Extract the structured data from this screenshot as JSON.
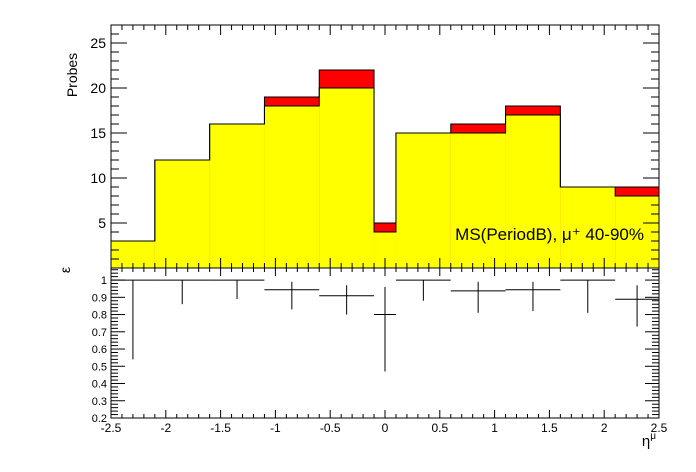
{
  "chart_data": [
    {
      "type": "bar",
      "panel": "top",
      "ylabel": "Probes",
      "annotation": "MS(PeriodB), μ⁺ 40-90%",
      "xlim": [
        -2.5,
        2.5
      ],
      "ylim": [
        0,
        27
      ],
      "yticks_major": [
        5,
        10,
        15,
        20,
        25
      ],
      "bin_edges": [
        -2.5,
        -2.1,
        -1.6,
        -1.1,
        -0.6,
        -0.1,
        0.1,
        0.6,
        1.1,
        1.6,
        2.1,
        2.5
      ],
      "series": [
        {
          "name": "",
          "color": "#ffff00",
          "values": [
            3,
            12,
            16,
            18,
            20,
            4,
            15,
            15,
            17,
            9,
            8
          ]
        },
        {
          "name": "",
          "color": "#ff0000",
          "values": [
            3,
            12,
            16,
            19,
            22,
            5,
            15,
            16,
            18,
            9,
            9
          ]
        }
      ]
    },
    {
      "type": "scatter",
      "panel": "bottom",
      "ylabel": "ε",
      "xlabel": "η^μ",
      "xlim": [
        -2.5,
        2.5
      ],
      "ylim": [
        0.2,
        1.07
      ],
      "xticks": [
        -2.5,
        -2,
        -1.5,
        -1,
        -0.5,
        0,
        0.5,
        1,
        1.5,
        2,
        2.5
      ],
      "xtick_labels": [
        "-2.5",
        "-2",
        "-1.5",
        "-1",
        "-0.5",
        "0",
        "0.5",
        "1",
        "1.5",
        "2",
        "2.5"
      ],
      "yticks": [
        0.2,
        0.3,
        0.4,
        0.5,
        0.6,
        0.7,
        0.8,
        0.9,
        1
      ],
      "ytick_labels": [
        "0.2",
        "0.3",
        "0.4",
        "0.5",
        "0.6",
        "0.7",
        "0.8",
        "0.9",
        "1"
      ],
      "points": [
        {
          "xlo": -2.5,
          "xhi": -2.1,
          "y": 1.0,
          "ylo": 0.54,
          "yhi": 1.0
        },
        {
          "xlo": -2.1,
          "xhi": -1.6,
          "y": 1.0,
          "ylo": 0.86,
          "yhi": 1.0
        },
        {
          "xlo": -1.6,
          "xhi": -1.1,
          "y": 1.0,
          "ylo": 0.89,
          "yhi": 1.0
        },
        {
          "xlo": -1.1,
          "xhi": -0.6,
          "y": 0.944,
          "ylo": 0.83,
          "yhi": 0.99
        },
        {
          "xlo": -0.6,
          "xhi": -0.1,
          "y": 0.909,
          "ylo": 0.8,
          "yhi": 0.97
        },
        {
          "xlo": -0.1,
          "xhi": 0.1,
          "y": 0.8,
          "ylo": 0.47,
          "yhi": 0.96
        },
        {
          "xlo": 0.1,
          "xhi": 0.6,
          "y": 1.0,
          "ylo": 0.88,
          "yhi": 1.0
        },
        {
          "xlo": 0.6,
          "xhi": 1.1,
          "y": 0.9375,
          "ylo": 0.81,
          "yhi": 0.99
        },
        {
          "xlo": 1.1,
          "xhi": 1.6,
          "y": 0.944,
          "ylo": 0.82,
          "yhi": 0.99
        },
        {
          "xlo": 1.6,
          "xhi": 2.1,
          "y": 1.0,
          "ylo": 0.81,
          "yhi": 1.0
        },
        {
          "xlo": 2.1,
          "xhi": 2.5,
          "y": 0.889,
          "ylo": 0.73,
          "yhi": 0.97
        }
      ]
    }
  ]
}
